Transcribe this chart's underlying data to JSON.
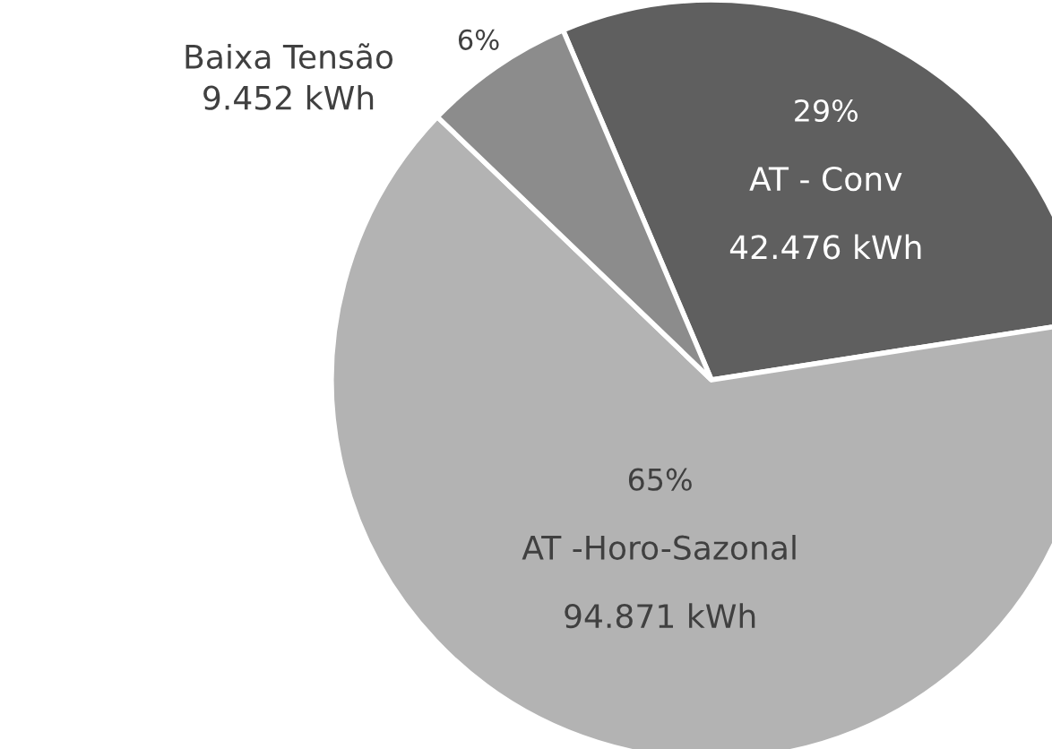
{
  "chart_data": {
    "type": "pie",
    "categories": [
      "AT - Conv",
      "AT -Horo-Sazonal",
      "Baixa Tensão"
    ],
    "values": [
      42476,
      94871,
      9452
    ],
    "colors": [
      "#5f5f5f",
      "#b3b3b3",
      "#8c8c8c"
    ],
    "value_labels": [
      "42.476 kWh",
      "94.871 kWh",
      "9.452 kWh"
    ],
    "annotations": [
      {
        "text": "29%",
        "x": "AT - Conv"
      },
      {
        "text": "65%",
        "x": "AT -Horo-Sazonal"
      },
      {
        "text": "6%",
        "x": "Baixa Tensão"
      }
    ],
    "legend": false
  }
}
